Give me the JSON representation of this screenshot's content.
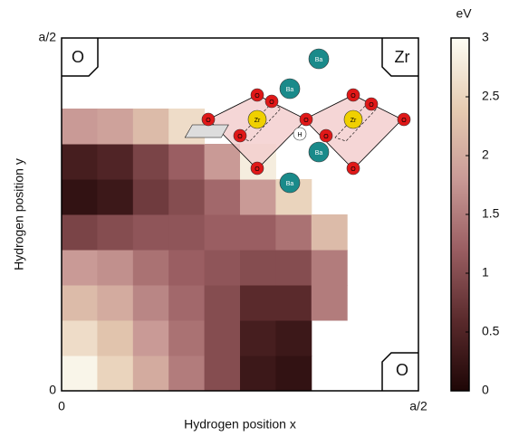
{
  "chart_data": {
    "type": "heatmap",
    "xlabel": "Hydrogen position x",
    "ylabel": "Hydrogen position y",
    "xlim": [
      0,
      0.5
    ],
    "ylim": [
      0,
      0.5
    ],
    "xticks": [
      0,
      {
        "value": 0.5,
        "label": "a/2"
      }
    ],
    "yticks": [
      0,
      {
        "value": 0.5,
        "label": "a/2"
      }
    ],
    "x": [
      0.025,
      0.075,
      0.125,
      0.175,
      0.225,
      0.275,
      0.325,
      0.375,
      0.425,
      0.475
    ],
    "y": [
      0.025,
      0.075,
      0.125,
      0.175,
      0.225,
      0.275,
      0.325,
      0.375,
      0.425,
      0.475
    ],
    "z": [
      [
        2.9,
        2.5,
        2.0,
        1.5,
        1.0,
        0.3,
        0.2,
        null,
        null,
        null
      ],
      [
        2.6,
        2.3,
        1.8,
        1.4,
        1.0,
        0.4,
        0.3,
        null,
        null,
        null
      ],
      [
        2.2,
        2.0,
        1.6,
        1.3,
        1.0,
        0.6,
        0.6,
        1.5,
        null,
        null
      ],
      [
        1.8,
        1.7,
        1.4,
        1.2,
        1.1,
        1.0,
        1.0,
        1.5,
        null,
        null
      ],
      [
        0.9,
        1.0,
        1.1,
        1.1,
        1.2,
        1.2,
        1.4,
        2.2,
        null,
        null
      ],
      [
        0.2,
        0.3,
        0.8,
        1.0,
        1.3,
        1.8,
        2.5,
        null,
        null,
        null
      ],
      [
        0.4,
        0.5,
        0.9,
        1.2,
        1.8,
        2.8,
        null,
        null,
        null,
        null
      ],
      [
        1.8,
        1.9,
        2.2,
        2.6,
        null,
        null,
        null,
        null,
        null,
        null
      ],
      [
        null,
        null,
        null,
        null,
        null,
        null,
        null,
        null,
        null,
        null
      ],
      [
        null,
        null,
        null,
        null,
        null,
        null,
        null,
        null,
        null,
        null
      ]
    ],
    "colorbar_label": "eV",
    "clim": [
      0,
      3
    ],
    "cticks": [
      0,
      0.5,
      1,
      1.5,
      2,
      2.5,
      3
    ],
    "colormap": [
      "#1e0606",
      "#5a2a2c",
      "#9a5e62",
      "#c99a96",
      "#e6ccb2",
      "#fdfdf4"
    ],
    "annotations": [
      "O",
      "Zr",
      "O"
    ],
    "inset_atoms": [
      {
        "label": "O",
        "color": "#e01818"
      },
      {
        "label": "O",
        "color": "#e01818"
      },
      {
        "label": "O",
        "color": "#e01818"
      },
      {
        "label": "O",
        "color": "#e01818"
      },
      {
        "label": "O",
        "color": "#e01818"
      },
      {
        "label": "O",
        "color": "#e01818"
      },
      {
        "label": "O",
        "color": "#e01818"
      },
      {
        "label": "O",
        "color": "#e01818"
      },
      {
        "label": "O",
        "color": "#e01818"
      },
      {
        "label": "O",
        "color": "#e01818"
      },
      {
        "label": "O",
        "color": "#e01818"
      },
      {
        "label": "Zr",
        "color": "#f0d000"
      },
      {
        "label": "Zr",
        "color": "#f0d000"
      },
      {
        "label": "Ba",
        "color": "#1a8a8a"
      },
      {
        "label": "Ba",
        "color": "#1a8a8a"
      },
      {
        "label": "Ba",
        "color": "#1a8a8a"
      },
      {
        "label": "Ba",
        "color": "#1a8a8a"
      },
      {
        "label": "H",
        "color": "#ffffff"
      }
    ]
  }
}
